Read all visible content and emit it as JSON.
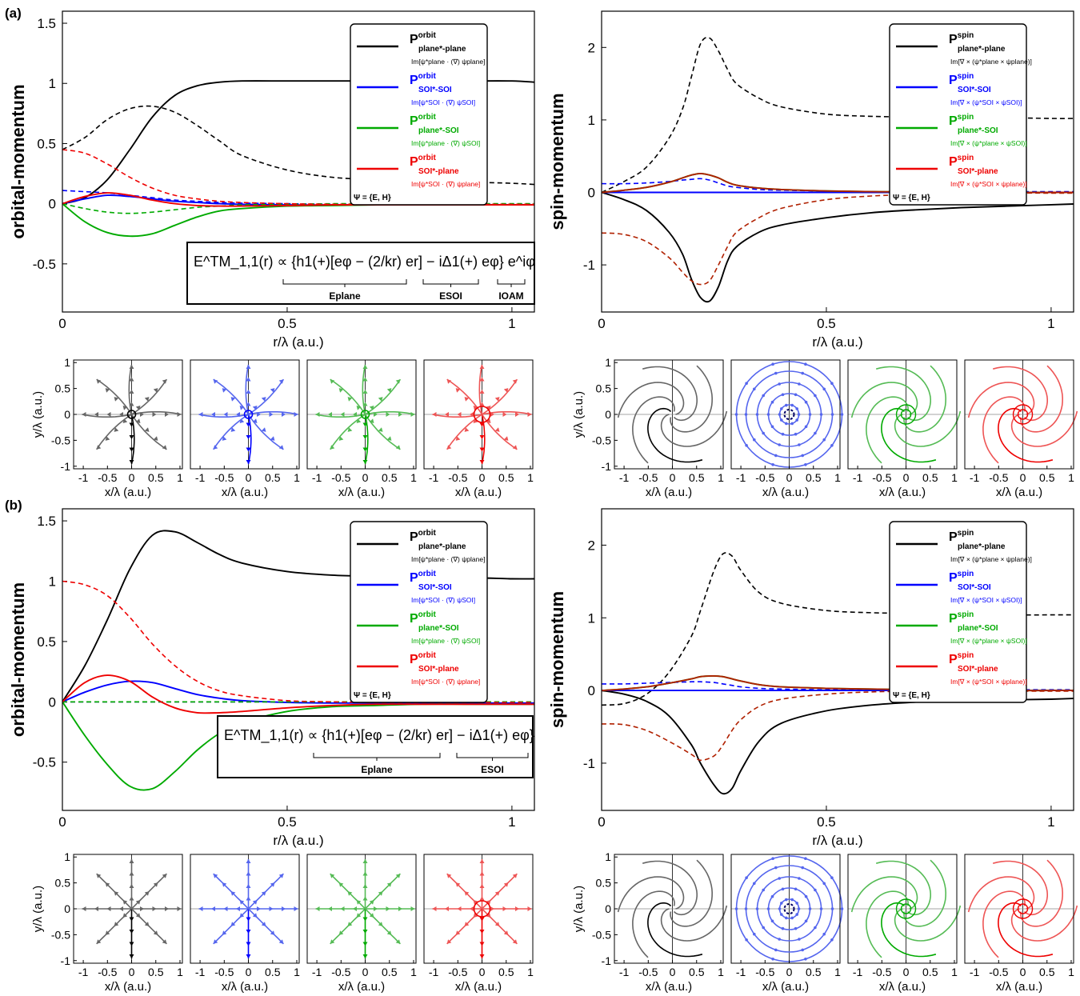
{
  "panels": {
    "a": {
      "label": "(a)"
    },
    "b": {
      "label": "(b)"
    }
  },
  "axes_text": {
    "orbital_ylabel": "orbital-momentum",
    "spin_ylabel": "spin-momentum",
    "r_xlabel": "r/λ (a.u.)",
    "small_xlabel": "x/λ (a.u.)",
    "small_ylabel": "y/λ (a.u.)"
  },
  "legend": {
    "orbital": [
      {
        "P": "P",
        "sup": "orbit",
        "sub": "plane*-plane",
        "formula": "Im[ψ*plane · (∇) ψplane]",
        "color": "#000000"
      },
      {
        "P": "P",
        "sup": "orbit",
        "sub": "SOI*-SOI",
        "formula": "Im[ψ*SOI · (∇) ψSOI]",
        "color": "#0000ff"
      },
      {
        "P": "P",
        "sup": "orbit",
        "sub": "plane*-SOI",
        "formula": "Im[ψ*plane · (∇) ψSOI]",
        "color": "#00aa00"
      },
      {
        "P": "P",
        "sup": "orbit",
        "sub": "SOI*-plane",
        "formula": "Im[ψ*SOI · (∇) ψplane]",
        "color": "#ee0000"
      }
    ],
    "spin": [
      {
        "P": "P",
        "sup": "spin",
        "sub": "plane*-plane",
        "formula": "Im[∇ × (ψ*plane × ψplane)]",
        "color": "#000000"
      },
      {
        "P": "P",
        "sup": "spin",
        "sub": "SOI*-SOI",
        "formula": "Im[∇ × (ψ*SOI × ψSOI)]",
        "color": "#0000ff"
      },
      {
        "P": "P",
        "sup": "spin",
        "sub": "plane*-SOI",
        "formula": "Im[∇ × (ψ*plane × ψSOI)]",
        "color": "#00aa00"
      },
      {
        "P": "P",
        "sup": "spin",
        "sub": "SOI*-plane",
        "formula": "Im[∇ × (ψ*SOI × ψplane)]",
        "color": "#ee0000"
      }
    ],
    "psi_note": "Ψ = {E, H}"
  },
  "equations": {
    "a": {
      "text": "E^TM_1,1(r) ∝ {h1(+)[eφ − (2/kr) er] − iΔ1(+) eφ} e^iφ",
      "brace1": "Eplane",
      "brace2": "ESOI",
      "brace3": "IOAM"
    },
    "b": {
      "text": "E^TM_1,1(r) ∝ {h1(+)[eφ − (2/kr) er] − iΔ1(+) eφ}",
      "brace1": "Eplane",
      "brace2": "ESOI"
    }
  },
  "colors": {
    "black": "#000000",
    "blue": "#0000ff",
    "green": "#00aa00",
    "red": "#ee0000",
    "darkred": "#b02000"
  },
  "chart_data": [
    {
      "id": "a-orbital",
      "type": "line",
      "xlabel": "r/λ (a.u.)",
      "ylabel": "orbital-momentum",
      "xlim": [
        0,
        1.05
      ],
      "ylim": [
        -0.9,
        1.6
      ],
      "xticks": [
        0,
        0.5,
        1
      ],
      "yticks": [
        -0.5,
        0,
        0.5,
        1,
        1.5
      ],
      "x": [
        0,
        0.05,
        0.1,
        0.15,
        0.2,
        0.25,
        0.3,
        0.35,
        0.4,
        0.5,
        0.6,
        0.7,
        0.8,
        0.9,
        1.0,
        1.05
      ],
      "series": [
        {
          "name": "P orbit plane*-plane (solid)",
          "color": "#000000",
          "dash": false,
          "values": [
            0,
            0.05,
            0.2,
            0.45,
            0.72,
            0.9,
            0.98,
            1.01,
            1.02,
            1.02,
            1.02,
            1.02,
            1.02,
            1.02,
            1.02,
            1.01
          ]
        },
        {
          "name": "plane*-plane (dashed)",
          "color": "#000000",
          "dash": true,
          "values": [
            0.45,
            0.55,
            0.7,
            0.79,
            0.81,
            0.76,
            0.65,
            0.52,
            0.4,
            0.28,
            0.22,
            0.2,
            0.19,
            0.18,
            0.17,
            0.16
          ]
        },
        {
          "name": "P orbit SOI*-SOI (solid)",
          "color": "#0000ff",
          "dash": false,
          "values": [
            0,
            0.04,
            0.07,
            0.06,
            0.04,
            0.02,
            0.01,
            0.0,
            -0.005,
            -0.01,
            -0.01,
            -0.01,
            -0.01,
            -0.01,
            -0.01,
            -0.01
          ]
        },
        {
          "name": "SOI*-SOI (dashed)",
          "color": "#0000ff",
          "dash": true,
          "values": [
            0.11,
            0.1,
            0.09,
            0.07,
            0.05,
            0.03,
            0.02,
            0.01,
            0.005,
            0,
            -0.005,
            -0.005,
            -0.005,
            -0.005,
            -0.005,
            -0.005
          ]
        },
        {
          "name": "P orbit plane*-SOI (solid)",
          "color": "#00aa00",
          "dash": false,
          "values": [
            0,
            -0.15,
            -0.24,
            -0.27,
            -0.25,
            -0.18,
            -0.11,
            -0.06,
            -0.04,
            -0.02,
            -0.015,
            -0.01,
            -0.01,
            -0.01,
            -0.01,
            -0.01
          ]
        },
        {
          "name": "plane*-SOI (dashed)",
          "color": "#00aa00",
          "dash": true,
          "values": [
            0,
            -0.04,
            -0.07,
            -0.08,
            -0.07,
            -0.05,
            -0.03,
            -0.02,
            -0.01,
            -0.005,
            0,
            0,
            0,
            0,
            0,
            0
          ]
        },
        {
          "name": "P orbit SOI*-plane (solid)",
          "color": "#ee0000",
          "dash": false,
          "values": [
            0,
            0.06,
            0.09,
            0.07,
            0.03,
            0.0,
            -0.015,
            -0.02,
            -0.02,
            -0.015,
            -0.01,
            -0.01,
            -0.01,
            -0.01,
            -0.01,
            -0.01
          ]
        },
        {
          "name": "SOI*-plane (dashed)",
          "color": "#ee0000",
          "dash": true,
          "values": [
            0.45,
            0.42,
            0.33,
            0.22,
            0.13,
            0.07,
            0.04,
            0.02,
            0.01,
            0,
            -0.005,
            -0.005,
            -0.005,
            -0.005,
            -0.005,
            -0.005
          ]
        }
      ]
    },
    {
      "id": "a-spin",
      "type": "line",
      "xlabel": "r/λ (a.u.)",
      "ylabel": "spin-momentum",
      "xlim": [
        0,
        1.05
      ],
      "ylim": [
        -1.65,
        2.5
      ],
      "xticks": [
        0,
        0.5,
        1
      ],
      "yticks": [
        -1,
        0,
        1,
        2
      ],
      "x": [
        0,
        0.05,
        0.1,
        0.15,
        0.18,
        0.2,
        0.22,
        0.24,
        0.26,
        0.28,
        0.3,
        0.35,
        0.4,
        0.5,
        0.6,
        0.7,
        0.8,
        0.9,
        1.0,
        1.05
      ],
      "series": [
        {
          "name": "P spin plane*-plane (solid)",
          "color": "#000000",
          "dash": false,
          "values": [
            0,
            -0.1,
            -0.25,
            -0.55,
            -0.85,
            -1.2,
            -1.45,
            -1.5,
            -1.3,
            -0.95,
            -0.75,
            -0.55,
            -0.45,
            -0.35,
            -0.28,
            -0.24,
            -0.21,
            -0.19,
            -0.17,
            -0.16
          ]
        },
        {
          "name": "plane*-plane (dashed)",
          "color": "#000000",
          "dash": true,
          "values": [
            0,
            0.15,
            0.35,
            0.75,
            1.15,
            1.6,
            2.05,
            2.13,
            1.95,
            1.7,
            1.5,
            1.3,
            1.18,
            1.08,
            1.05,
            1.04,
            1.03,
            1.03,
            1.02,
            1.02
          ]
        },
        {
          "name": "P spin SOI*-SOI (solid)",
          "color": "#0000ff",
          "dash": false,
          "values": [
            0,
            0,
            0,
            0,
            0,
            0,
            0,
            0,
            0,
            0,
            0,
            0,
            0,
            0,
            0,
            0,
            0,
            0,
            0,
            0
          ]
        },
        {
          "name": "SOI*-SOI (dashed)",
          "color": "#0000ff",
          "dash": true,
          "values": [
            0.12,
            0.12,
            0.13,
            0.15,
            0.17,
            0.18,
            0.19,
            0.17,
            0.13,
            0.09,
            0.07,
            0.04,
            0.03,
            0.02,
            0.01,
            0.01,
            0.01,
            0.01,
            0.01,
            0.01
          ]
        },
        {
          "name": "P spin plane*-SOI (solid)",
          "color": "#00aa00",
          "dash": false,
          "values": [
            0,
            0.03,
            0.07,
            0.14,
            0.2,
            0.24,
            0.26,
            0.24,
            0.2,
            0.14,
            0.1,
            0.06,
            0.04,
            0.02,
            0.01,
            0.01,
            0.01,
            0.0,
            0.0,
            0.0
          ]
        },
        {
          "name": "P spin SOI*-plane (solid)",
          "color": "#b02000",
          "dash": false,
          "values": [
            0,
            0.03,
            0.07,
            0.14,
            0.2,
            0.24,
            0.26,
            0.24,
            0.2,
            0.14,
            0.1,
            0.06,
            0.04,
            0.02,
            0.01,
            0.01,
            0.01,
            0.0,
            0.0,
            0.0
          ]
        },
        {
          "name": "SOI*-plane (dashed)",
          "color": "#b02000",
          "dash": true,
          "values": [
            -0.56,
            -0.58,
            -0.68,
            -0.9,
            -1.1,
            -1.22,
            -1.27,
            -1.22,
            -1.0,
            -0.75,
            -0.55,
            -0.35,
            -0.22,
            -0.1,
            -0.05,
            -0.03,
            -0.02,
            -0.01,
            -0.01,
            -0.01
          ]
        }
      ]
    },
    {
      "id": "b-orbital",
      "type": "line",
      "xlabel": "r/λ (a.u.)",
      "ylabel": "orbital-momentum",
      "xlim": [
        0,
        1.05
      ],
      "ylim": [
        -0.9,
        1.6
      ],
      "xticks": [
        0,
        0.5,
        1
      ],
      "yticks": [
        -0.5,
        0,
        0.5,
        1,
        1.5
      ],
      "x": [
        0,
        0.05,
        0.1,
        0.15,
        0.2,
        0.25,
        0.3,
        0.35,
        0.4,
        0.5,
        0.6,
        0.7,
        0.8,
        0.9,
        1.0,
        1.05
      ],
      "series": [
        {
          "name": "P orbit plane*-plane (solid)",
          "color": "#000000",
          "dash": false,
          "values": [
            0,
            0.3,
            0.68,
            1.1,
            1.38,
            1.41,
            1.32,
            1.22,
            1.15,
            1.08,
            1.05,
            1.04,
            1.03,
            1.03,
            1.02,
            1.02
          ]
        },
        {
          "name": "plane*-plane (dashed)",
          "color": "#000000",
          "dash": true,
          "values": [
            0,
            0,
            0,
            0,
            0,
            0,
            0,
            0,
            0,
            0,
            0,
            0,
            0,
            0,
            0,
            0
          ]
        },
        {
          "name": "P orbit SOI*-SOI (solid)",
          "color": "#0000ff",
          "dash": false,
          "values": [
            0,
            0.08,
            0.14,
            0.17,
            0.16,
            0.11,
            0.06,
            0.03,
            0.01,
            -0.005,
            -0.01,
            -0.01,
            -0.01,
            -0.01,
            -0.01,
            -0.01
          ]
        },
        {
          "name": "SOI*-SOI (dashed)",
          "color": "#0000ff",
          "dash": true,
          "values": [
            0,
            0,
            0,
            0,
            0,
            0,
            0,
            0,
            0,
            0,
            0,
            0,
            0,
            0,
            0,
            0
          ]
        },
        {
          "name": "P orbit plane*-SOI (solid)",
          "color": "#00aa00",
          "dash": false,
          "values": [
            0,
            -0.28,
            -0.52,
            -0.7,
            -0.72,
            -0.58,
            -0.4,
            -0.26,
            -0.17,
            -0.08,
            -0.04,
            -0.03,
            -0.02,
            -0.02,
            -0.02,
            -0.02
          ]
        },
        {
          "name": "plane*-SOI (dashed)",
          "color": "#00aa00",
          "dash": true,
          "values": [
            0,
            0,
            0,
            0,
            0,
            0,
            0,
            0,
            0,
            0,
            0,
            0,
            0,
            0,
            0,
            0
          ]
        },
        {
          "name": "P orbit SOI*-plane (solid)",
          "color": "#ee0000",
          "dash": false,
          "values": [
            0,
            0.16,
            0.22,
            0.17,
            0.04,
            -0.05,
            -0.09,
            -0.09,
            -0.08,
            -0.05,
            -0.03,
            -0.02,
            -0.02,
            -0.02,
            -0.02,
            -0.02
          ]
        },
        {
          "name": "SOI*-plane (dashed)",
          "color": "#ee0000",
          "dash": true,
          "values": [
            1.0,
            0.97,
            0.88,
            0.7,
            0.48,
            0.3,
            0.17,
            0.09,
            0.05,
            0.01,
            0,
            -0.005,
            -0.005,
            -0.005,
            -0.005,
            -0.005
          ]
        }
      ]
    },
    {
      "id": "b-spin",
      "type": "line",
      "xlabel": "r/λ (a.u.)",
      "ylabel": "spin-momentum",
      "xlim": [
        0,
        1.05
      ],
      "ylim": [
        -1.65,
        2.5
      ],
      "xticks": [
        0,
        0.5,
        1
      ],
      "yticks": [
        -1,
        0,
        1,
        2
      ],
      "x": [
        0,
        0.05,
        0.1,
        0.15,
        0.2,
        0.22,
        0.25,
        0.27,
        0.29,
        0.31,
        0.35,
        0.4,
        0.5,
        0.6,
        0.7,
        0.8,
        0.9,
        1.0,
        1.05
      ],
      "series": [
        {
          "name": "P spin plane*-plane (solid)",
          "color": "#000000",
          "dash": false,
          "values": [
            0,
            -0.05,
            -0.15,
            -0.35,
            -0.75,
            -1.0,
            -1.3,
            -1.42,
            -1.35,
            -1.1,
            -0.7,
            -0.45,
            -0.28,
            -0.2,
            -0.16,
            -0.14,
            -0.13,
            -0.12,
            -0.11
          ]
        },
        {
          "name": "plane*-plane (dashed)",
          "color": "#000000",
          "dash": true,
          "values": [
            -0.2,
            -0.18,
            -0.05,
            0.25,
            0.75,
            1.1,
            1.65,
            1.88,
            1.85,
            1.65,
            1.35,
            1.2,
            1.1,
            1.07,
            1.06,
            1.05,
            1.04,
            1.04,
            1.04
          ]
        },
        {
          "name": "P spin SOI*-SOI (solid)",
          "color": "#0000ff",
          "dash": false,
          "values": [
            0,
            0,
            0,
            0,
            0,
            0,
            0,
            0,
            0,
            0,
            0,
            0,
            0,
            0,
            0,
            0,
            0,
            0,
            0
          ]
        },
        {
          "name": "SOI*-SOI (dashed)",
          "color": "#0000ff",
          "dash": true,
          "values": [
            0.09,
            0.09,
            0.1,
            0.11,
            0.12,
            0.12,
            0.11,
            0.09,
            0.07,
            0.05,
            0.03,
            0.02,
            0.01,
            0.01,
            0.01,
            0.01,
            0.01,
            0.01,
            0.01
          ]
        },
        {
          "name": "P spin plane*-SOI (solid)",
          "color": "#00aa00",
          "dash": false,
          "values": [
            0,
            0.02,
            0.05,
            0.1,
            0.16,
            0.19,
            0.2,
            0.19,
            0.16,
            0.13,
            0.08,
            0.05,
            0.03,
            0.02,
            0.01,
            0.01,
            0.0,
            0.0,
            0.0
          ]
        },
        {
          "name": "P spin SOI*-plane (solid)",
          "color": "#b02000",
          "dash": false,
          "values": [
            0,
            0.02,
            0.05,
            0.1,
            0.16,
            0.19,
            0.2,
            0.19,
            0.16,
            0.13,
            0.08,
            0.05,
            0.03,
            0.02,
            0.01,
            0.01,
            0.0,
            0.0,
            0.0
          ]
        },
        {
          "name": "SOI*-plane (dashed)",
          "color": "#b02000",
          "dash": true,
          "values": [
            -0.46,
            -0.47,
            -0.55,
            -0.7,
            -0.88,
            -0.96,
            -0.9,
            -0.75,
            -0.55,
            -0.4,
            -0.22,
            -0.12,
            -0.05,
            -0.02,
            -0.01,
            -0.01,
            -0.01,
            -0.01,
            -0.01
          ]
        }
      ]
    },
    {
      "id": "small-maps",
      "type": "scatter",
      "xlabel": "x/λ (a.u.)",
      "ylabel": "y/λ (a.u.)",
      "xlim": [
        -1.2,
        1.05
      ],
      "ylim": [
        -1.05,
        1.05
      ],
      "xticks": [
        -1,
        -0.5,
        0,
        0.5,
        1
      ],
      "yticks": [
        -1,
        -0.5,
        0,
        0.5,
        1
      ],
      "note": "Vector field maps; colors black, blue, green, red for plane*-plane, SOI*-SOI, plane*-SOI, SOI*-plane"
    }
  ]
}
